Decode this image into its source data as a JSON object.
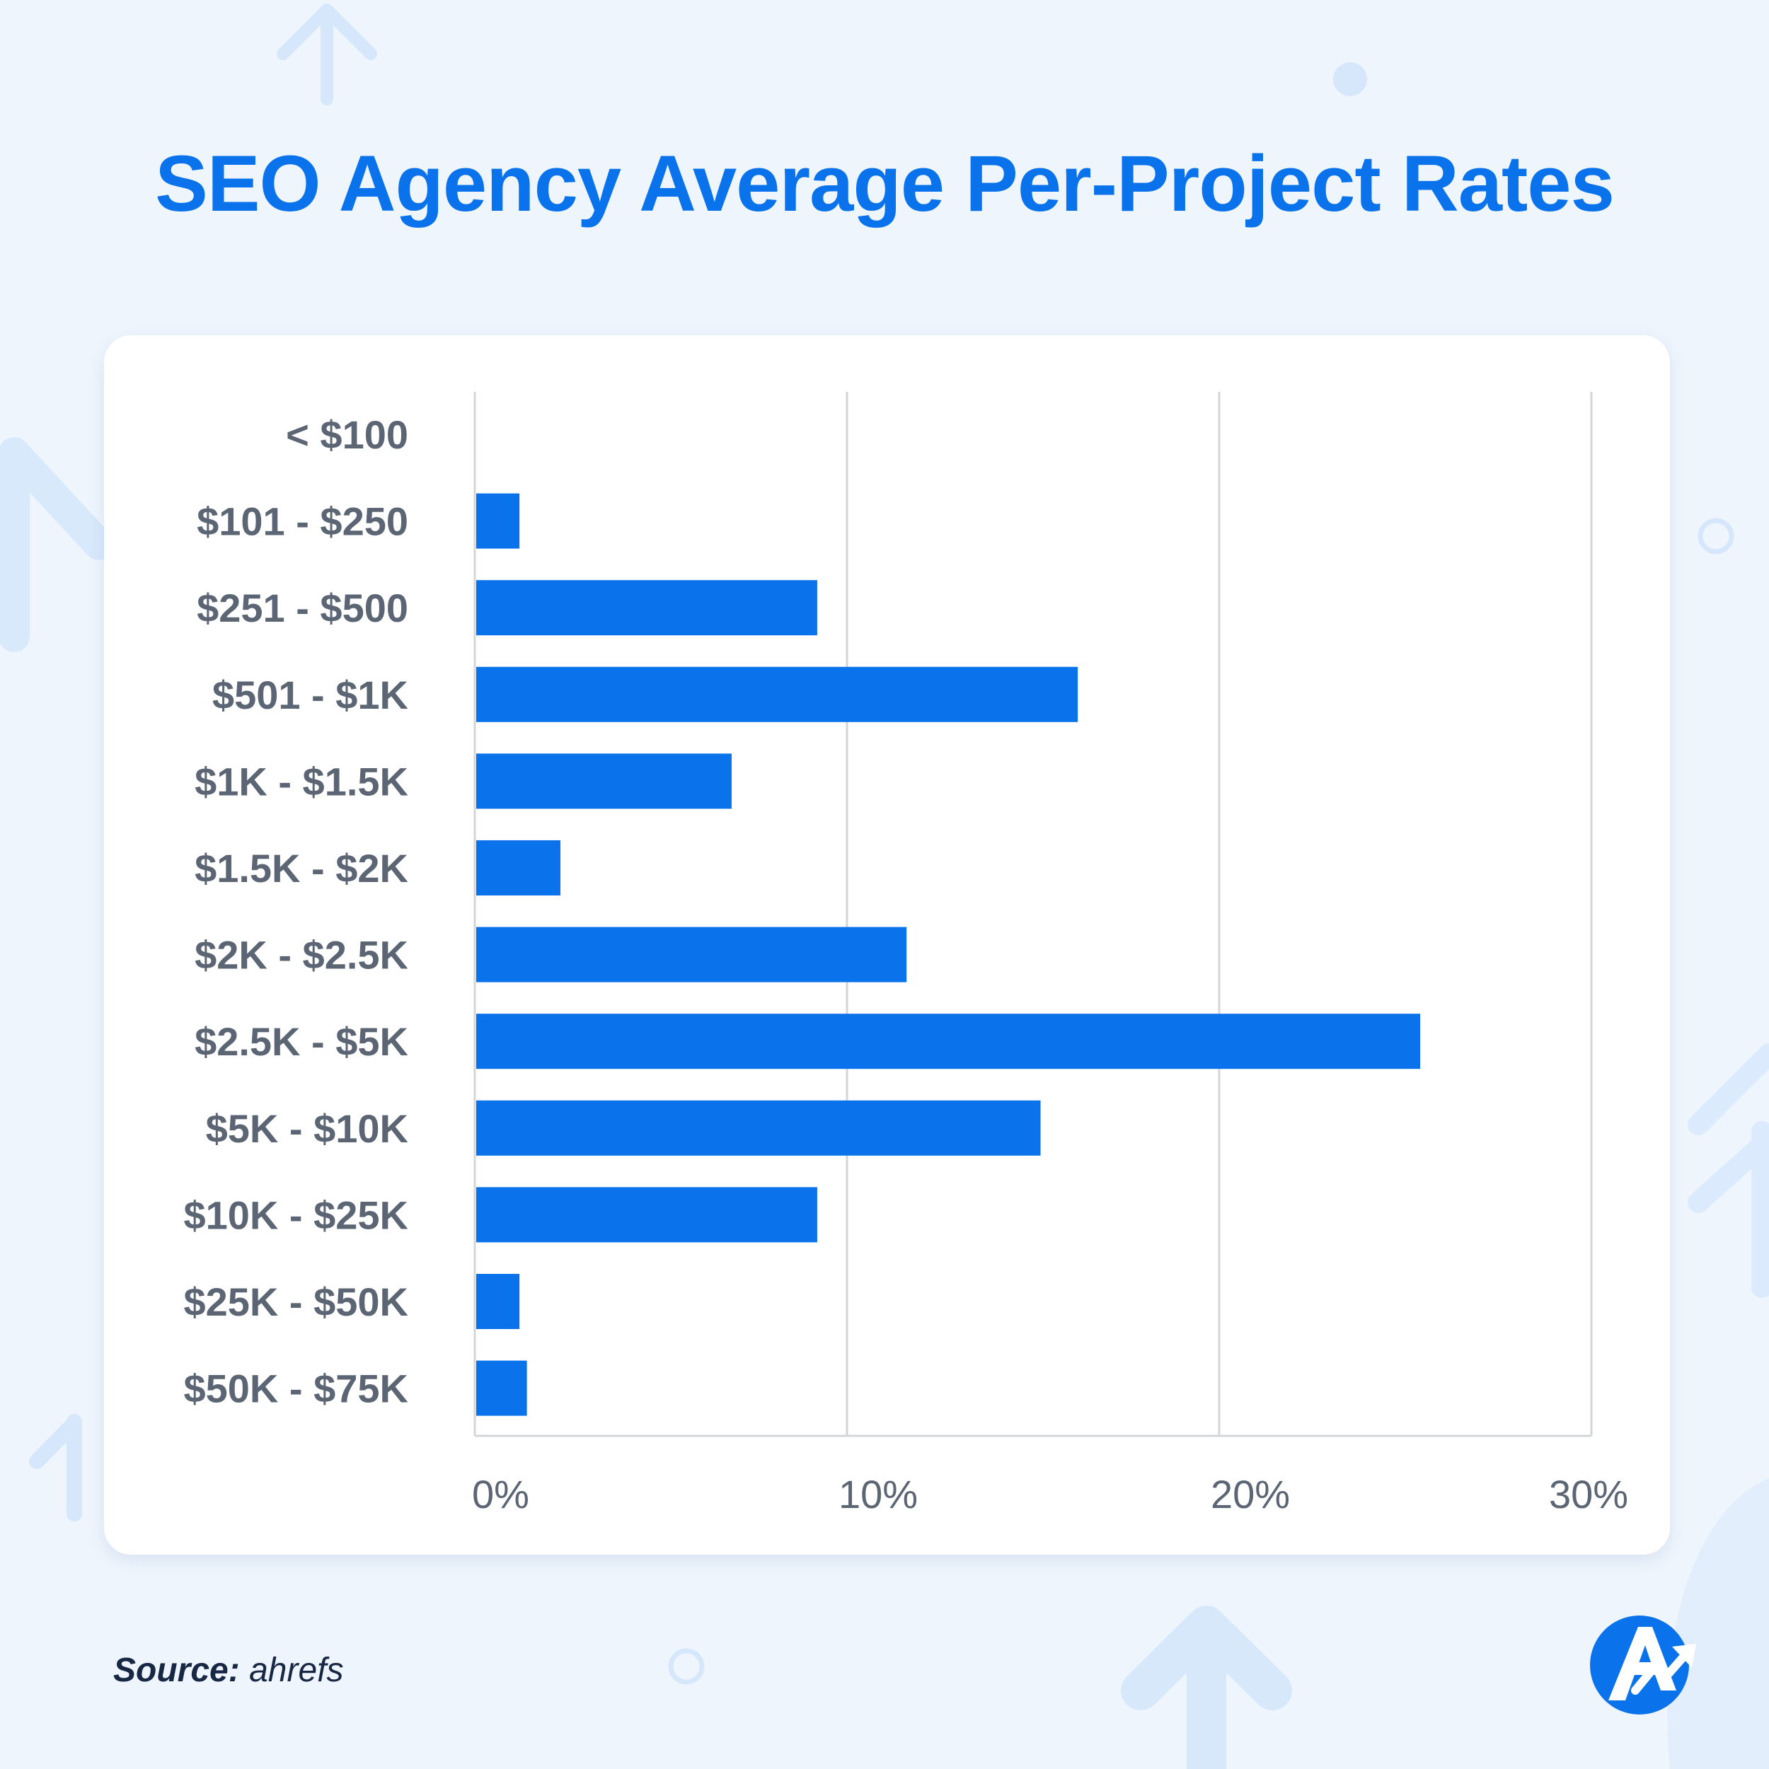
{
  "title": "SEO Agency Average Per-Project Rates",
  "source": {
    "label": "Source:",
    "value": "ahrefs"
  },
  "colors": {
    "accent": "#0a73eb",
    "bar": "#0a73eb",
    "text": "#5b6573",
    "grid": "#d3d5d8",
    "background": "#eef5fd"
  },
  "icons": [
    "arrow-up-icon",
    "dot-icon",
    "circle-icon",
    "brand-logo-icon"
  ],
  "chart_data": {
    "type": "bar",
    "orientation": "horizontal",
    "title": "SEO Agency Average Per-Project Rates",
    "xlabel": "",
    "ylabel": "",
    "categories": [
      "< $100",
      "$101 - $250",
      "$251 - $500",
      "$501 - $1K",
      "$1K - $1.5K",
      "$1.5K - $2K",
      "$2K - $2.5K",
      "$2.5K - $5K",
      "$5K - $10K",
      "$10K - $25K",
      "$25K - $50K",
      "$50K - $75K"
    ],
    "values": [
      0,
      1.2,
      9.2,
      16.2,
      6.9,
      2.3,
      11.6,
      25.4,
      15.2,
      9.2,
      1.2,
      1.4
    ],
    "value_unit": "%",
    "xlim": [
      0,
      30
    ],
    "ticks": [
      0,
      10,
      20,
      30
    ],
    "tick_labels": [
      "0%",
      "10%",
      "20%",
      "30%"
    ],
    "grid": true,
    "legend": "none"
  }
}
